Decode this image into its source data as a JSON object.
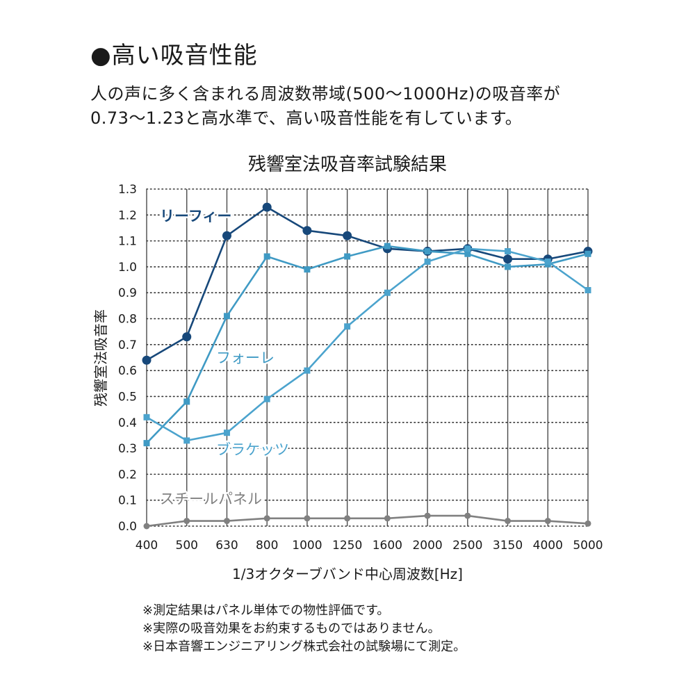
{
  "header": {
    "title": "●高い吸音性能",
    "desc_line1": "人の声に多く含まれる周波数帯域(500〜1000Hz)の吸音率が",
    "desc_line2": "0.73〜1.23と高水準で、高い吸音性能を有しています。"
  },
  "chart_data": {
    "type": "line",
    "title": "残響室法吸音率試験結果",
    "xlabel": "1/3オクターブバンド中心周波数[Hz]",
    "ylabel": "残響室法吸音率",
    "categories": [
      "400",
      "500",
      "630",
      "800",
      "1000",
      "1250",
      "1600",
      "2000",
      "2500",
      "3150",
      "4000",
      "5000"
    ],
    "ylim": [
      0,
      1.3
    ],
    "yticks": [
      "0.0",
      "0.1",
      "0.2",
      "0.3",
      "0.4",
      "0.5",
      "0.6",
      "0.7",
      "0.8",
      "0.9",
      "1.0",
      "1.1",
      "1.2",
      "1.3"
    ],
    "grid": "vertical solid, horizontal dotted",
    "series": [
      {
        "name": "リーフィー",
        "color": "#17487a",
        "marker": "circle",
        "values": [
          0.64,
          0.73,
          1.12,
          1.23,
          1.14,
          1.12,
          1.07,
          1.06,
          1.07,
          1.03,
          1.03,
          1.06
        ]
      },
      {
        "name": "フォーレ",
        "color": "#3f9ac4",
        "marker": "square",
        "values": [
          0.32,
          0.48,
          0.81,
          1.04,
          0.99,
          1.04,
          1.08,
          1.06,
          1.05,
          1.0,
          1.01,
          1.05
        ]
      },
      {
        "name": "ブラケッツ",
        "color": "#4ba3cd",
        "marker": "square",
        "values": [
          0.42,
          0.33,
          0.36,
          0.49,
          0.6,
          0.77,
          0.9,
          1.02,
          1.07,
          1.06,
          1.02,
          0.91
        ]
      },
      {
        "name": "スチールパネル",
        "color": "#808080",
        "marker": "circle",
        "values": [
          0.0,
          0.02,
          0.02,
          0.03,
          0.03,
          0.03,
          0.03,
          0.04,
          0.04,
          0.02,
          0.02,
          0.01
        ]
      }
    ]
  },
  "notes": [
    "※測定結果はパネル単体での物性評価です。",
    "※実際の吸音効果をお約束するものではありません。",
    "※日本音響エンジニアリング株式会社の試験場にて測定。"
  ]
}
